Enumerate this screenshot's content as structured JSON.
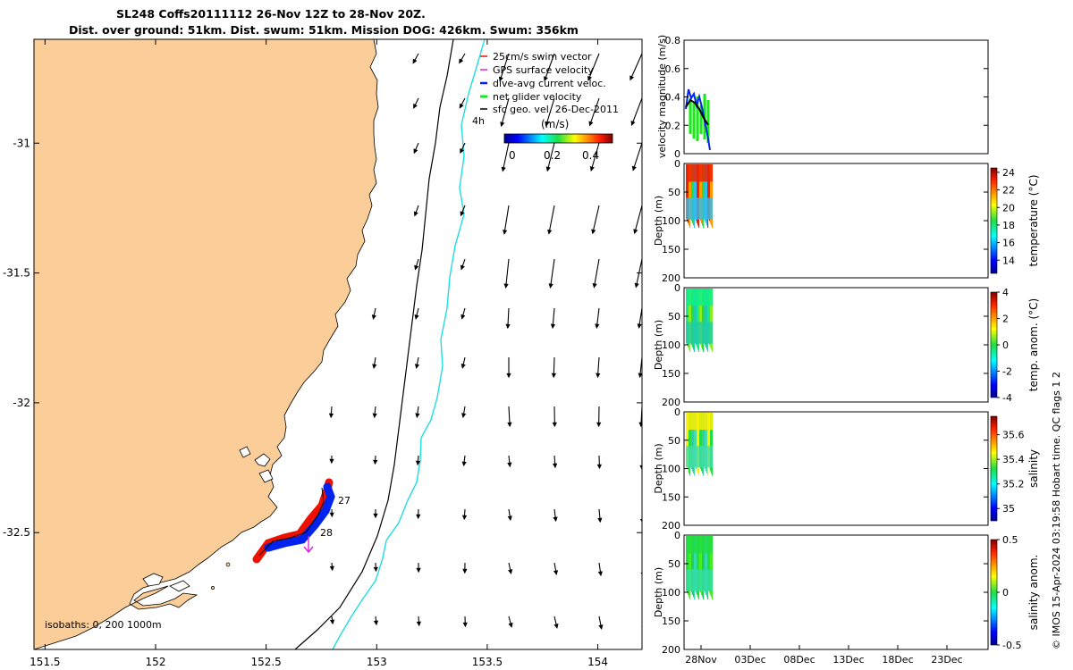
{
  "title": {
    "line1": "SL248 Coffs20111112 26-Nov 12Z to 28-Nov 20Z.",
    "line2": "Dist. over ground: 51km. Dist. swum: 51km. Mission DOG: 426km. Swum: 356km"
  },
  "colors": {
    "land": "#fbcd98",
    "isobath_200": "#000000",
    "isobath_1000": "#22dddd",
    "swim": "#ee1100",
    "gps": "#dd22dd",
    "dive_avg": "#0022ee",
    "net": "#11ee11",
    "sfc_geo": "#000000"
  },
  "map": {
    "x_ticks": [
      "151.5",
      "152",
      "152.5",
      "153",
      "153.5",
      "154"
    ],
    "y_ticks": [
      "-31",
      "-31.5",
      "-32",
      "-32.5"
    ],
    "xlim": [
      151.45,
      154.2
    ],
    "ylim": [
      -32.95,
      -30.6
    ],
    "legend": [
      {
        "key": "swim",
        "label": "25cm/s swim vector"
      },
      {
        "key": "gps",
        "label": "GPS surface velocity"
      },
      {
        "key": "dive_avg",
        "label": "dive-avg current veloc."
      },
      {
        "key": "net",
        "label": "net glider velocity"
      },
      {
        "key": "sfc_geo",
        "label": "sfc geo. vel. 26-Dec-2011"
      }
    ],
    "colorbar_label": "(m/s)",
    "colorbar_ticks": [
      "0",
      "0.2",
      "0.4"
    ],
    "label_4h": "4h",
    "day_labels": [
      "27",
      "28"
    ],
    "isobath_caption": "isobaths: 0, 200  1000m"
  },
  "chart_data": [
    {
      "type": "line",
      "name": "velocity-panel",
      "ylabel": "velocity magnitude (m/s)",
      "ylim": [
        0,
        0.8
      ],
      "y_ticks": [
        "0",
        "0.2",
        "0.4",
        "0.6",
        "0.8"
      ]
    },
    {
      "type": "heatmap",
      "name": "temperature-panel",
      "ylabel": "Depth (m)",
      "clabel": "temperature (°C)",
      "y_ticks": [
        "0",
        "50",
        "100",
        "150",
        "200"
      ],
      "c_ticks": [
        "24",
        "22",
        "20",
        "18",
        "16",
        "14"
      ],
      "clim": [
        12.5,
        24.5
      ]
    },
    {
      "type": "heatmap",
      "name": "temp-anomaly-panel",
      "ylabel": "Depth (m)",
      "clabel": "temp. anom. (°C)",
      "y_ticks": [
        "0",
        "50",
        "100",
        "150",
        "200"
      ],
      "c_ticks": [
        "4",
        "2",
        "0",
        "-2",
        "-4"
      ],
      "clim": [
        -4,
        4
      ]
    },
    {
      "type": "heatmap",
      "name": "salinity-panel",
      "ylabel": "Depth (m)",
      "clabel": "salinity",
      "y_ticks": [
        "0",
        "50",
        "100",
        "150",
        "200"
      ],
      "c_ticks": [
        "35.6",
        "35.4",
        "35.2",
        "35"
      ],
      "clim": [
        34.9,
        35.75
      ]
    },
    {
      "type": "heatmap",
      "name": "salinity-anomaly-panel",
      "ylabel": "Depth (m)",
      "clabel": "salinity anom.",
      "y_ticks": [
        "0",
        "50",
        "100",
        "150",
        "200"
      ],
      "c_ticks": [
        "0.5",
        "0",
        "-0.5"
      ],
      "clim": [
        -0.5,
        0.5
      ]
    }
  ],
  "time_axis": [
    "28Nov",
    "03Dec",
    "08Dec",
    "13Dec",
    "18Dec",
    "23Dec"
  ],
  "credit": "© IMOS 15-Apr-2024 03:19:58 Hobart time. QC flags 1  2"
}
